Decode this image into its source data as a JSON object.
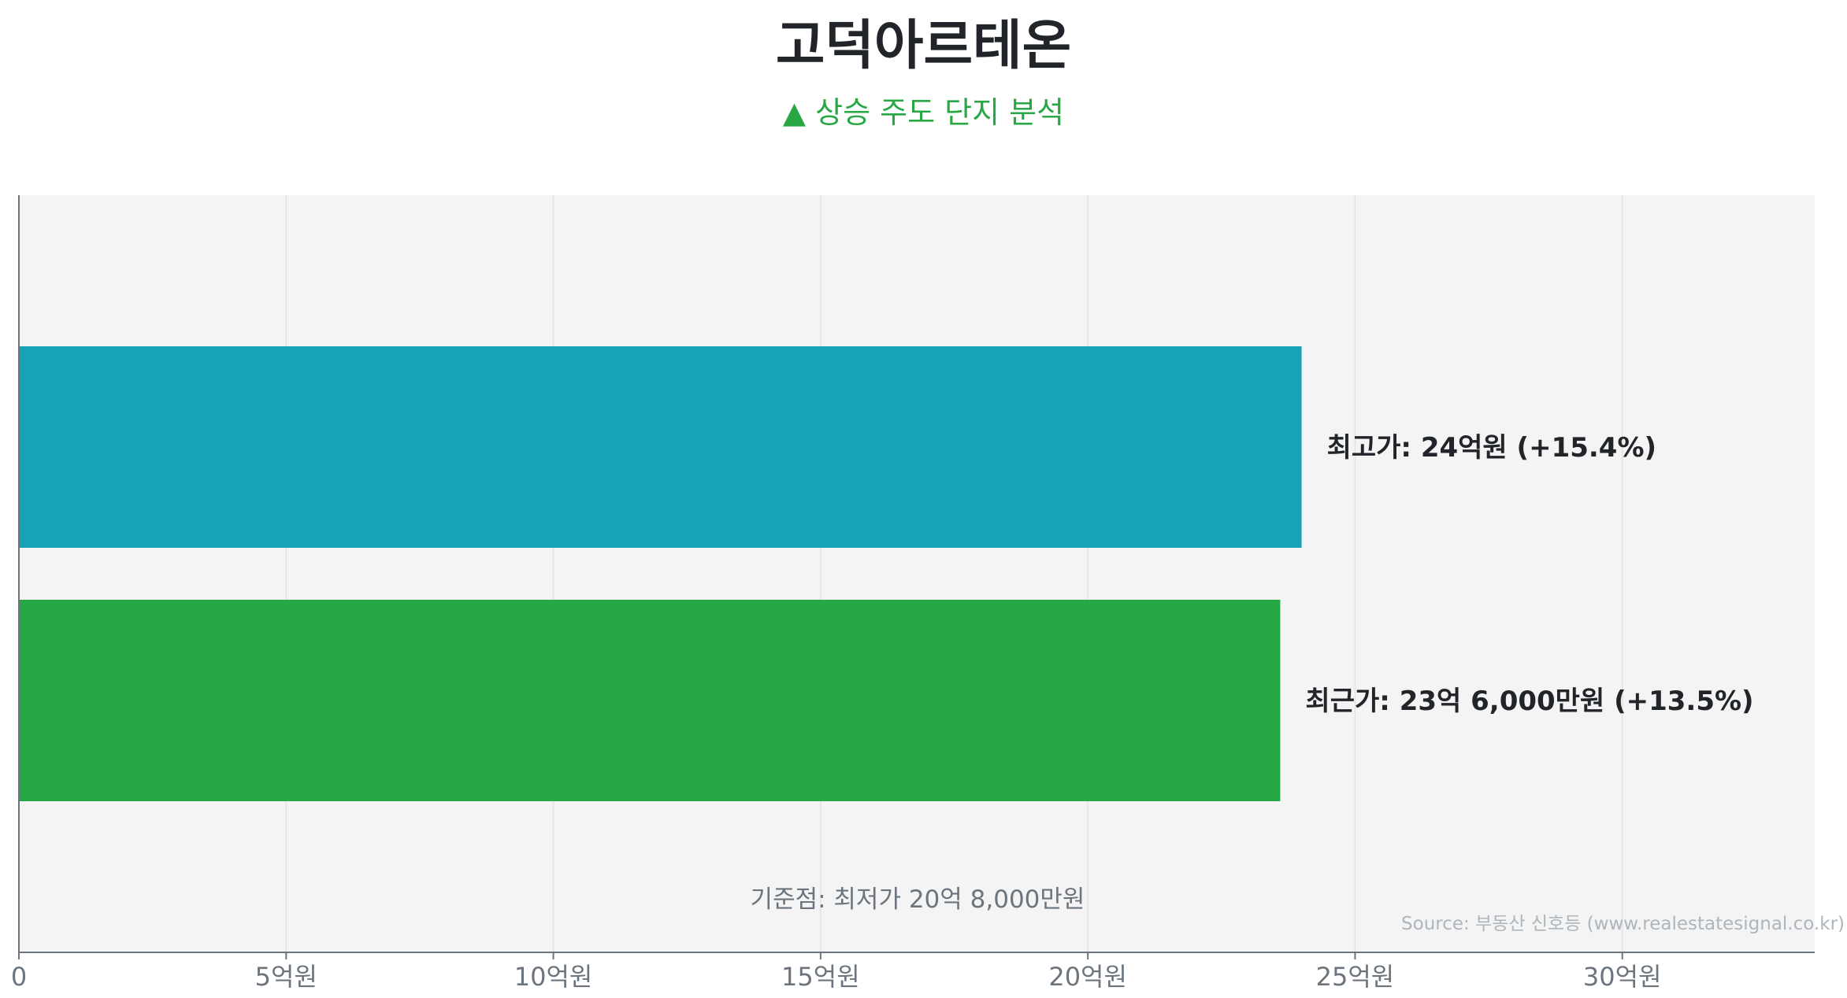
{
  "title": "고덕아르테온",
  "subtitle": "▲ 상승 주도 단지 분석",
  "chart_data": {
    "type": "bar",
    "orientation": "horizontal",
    "categories": [
      "최고가",
      "최근가"
    ],
    "values": [
      24.0,
      23.6
    ],
    "unit": "억원",
    "data_labels": [
      "최고가: 24억원 (+15.4%)",
      "최근가: 23억 6,000만원 (+13.5%)"
    ],
    "colors": [
      "#17a2b8",
      "#28a745"
    ],
    "xlim": [
      0,
      33.6
    ],
    "xticks": [
      0,
      5,
      10,
      15,
      20,
      25,
      30
    ],
    "xtick_labels": [
      "0",
      "5억원",
      "10억원",
      "15억원",
      "20억원",
      "25억원",
      "30억원"
    ],
    "grid": true,
    "annotation": "기준점: 최저가 20억 8,000만원",
    "source": "Source: 부동산 신호등 (www.realestatesignal.co.kr)",
    "background": "#f4f4f4"
  }
}
